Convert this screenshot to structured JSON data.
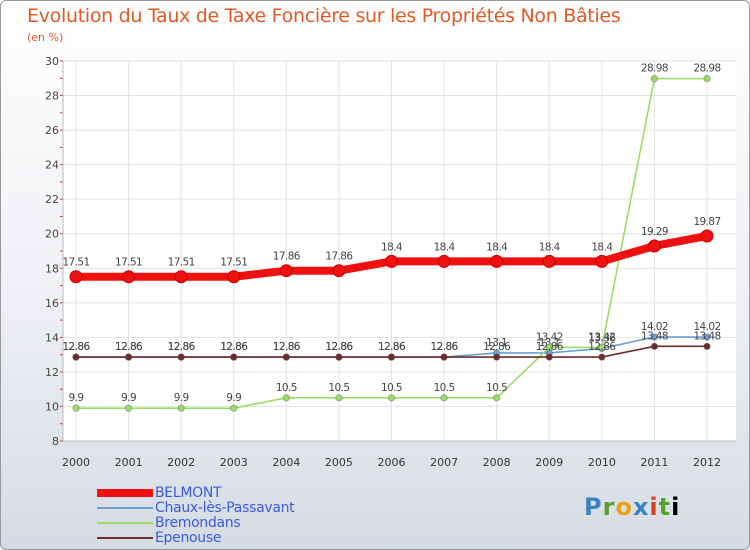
{
  "title": "Evolution du Taux de Taxe Foncière sur les Propriétés Non Bâties",
  "unit_label": "(en %)",
  "logo_text": "Proxiti",
  "chart_data": {
    "type": "line",
    "title": "Evolution du Taux de Taxe Foncière sur les Propriétés Non Bâties",
    "ylabel": "(en %)",
    "xlabel": "",
    "ylim": [
      8,
      30
    ],
    "yticks": [
      8,
      10,
      12,
      14,
      16,
      18,
      20,
      22,
      24,
      26,
      28,
      30
    ],
    "categories": [
      "2000",
      "2001",
      "2002",
      "2003",
      "2004",
      "2005",
      "2006",
      "2007",
      "2008",
      "2009",
      "2010",
      "2011",
      "2012"
    ],
    "legend_position": "bottom-left",
    "series": [
      {
        "name": "BELMONT",
        "color": "#ee1111",
        "line_style": "thick",
        "values": [
          17.51,
          17.51,
          17.51,
          17.51,
          17.86,
          17.86,
          18.4,
          18.4,
          18.4,
          18.4,
          18.4,
          19.29,
          19.87
        ],
        "labels": [
          "17.51",
          "17.51",
          "17.51",
          "17.51",
          "17.86",
          "17.86",
          "18.4",
          "18.4",
          "18.4",
          "18.4",
          "18.4",
          "19.29",
          "19.87"
        ]
      },
      {
        "name": "Chaux-lès-Passavant",
        "color": "#6a9fd4",
        "line_style": "thin",
        "values": [
          12.86,
          12.86,
          12.86,
          12.86,
          12.86,
          12.86,
          12.86,
          12.86,
          13.1,
          13.1,
          13.36,
          14.02,
          14.02
        ],
        "labels": [
          "12.86",
          "12.86",
          "12.86",
          "12.86",
          "12.86",
          "12.86",
          "12.86",
          "12.86",
          "13.1",
          "13.1",
          "13.36",
          "14.02",
          "14.02"
        ]
      },
      {
        "name": "Bremondans",
        "color": "#99dd66",
        "line_style": "thin",
        "values": [
          9.9,
          9.9,
          9.9,
          9.9,
          10.5,
          10.5,
          10.5,
          10.5,
          10.5,
          13.42,
          13.42,
          28.98,
          28.98
        ],
        "labels": [
          "9.9",
          "9.9",
          "9.9",
          "9.9",
          "10.5",
          "10.5",
          "10.5",
          "10.5",
          "10.5",
          "13.42",
          "13.42",
          "28.98",
          "28.98"
        ]
      },
      {
        "name": "Epenouse",
        "color": "#6b2c2c",
        "line_style": "thin",
        "values": [
          12.86,
          12.86,
          12.86,
          12.86,
          12.86,
          12.86,
          12.86,
          12.86,
          12.86,
          12.86,
          12.86,
          13.48,
          13.48
        ],
        "labels": [
          "12.86",
          "12.86",
          "12.86",
          "12.86",
          "12.86",
          "12.86",
          "12.86",
          "12.86",
          "12.86",
          "12.86",
          "12.86",
          "13.48",
          "13.48"
        ]
      }
    ]
  }
}
